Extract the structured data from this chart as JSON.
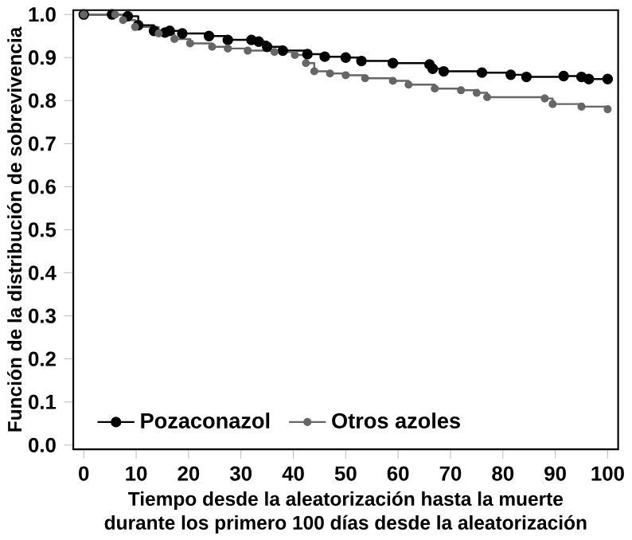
{
  "chart_data": {
    "type": "step",
    "xlabel": "Tiempo desde la aleatorización hasta la muerte\ndurante los primero 100 días desde la aleatorización",
    "ylabel": "Función de la distribución de sobrevivencia",
    "xlim": [
      -2,
      102
    ],
    "ylim": [
      -0.01,
      1.01
    ],
    "xticks": [
      0,
      10,
      20,
      30,
      40,
      50,
      60,
      70,
      80,
      90,
      100
    ],
    "yticks": [
      {
        "value": 0,
        "label": "0.0"
      },
      {
        "value": 0.1,
        "label": "0.1"
      },
      {
        "value": 0.2,
        "label": "0.2"
      },
      {
        "value": 0.3,
        "label": "0.3"
      },
      {
        "value": 0.4,
        "label": "0.4"
      },
      {
        "value": 0.5,
        "label": "0.5"
      },
      {
        "value": 0.6,
        "label": "0.6"
      },
      {
        "value": 0.7,
        "label": "0.7"
      },
      {
        "value": 0.8,
        "label": "0.8"
      },
      {
        "value": 0.9,
        "label": "0.9"
      },
      {
        "value": 1,
        "label": "1.0"
      }
    ],
    "legend": "bottom left",
    "marker": "circle",
    "grid": false,
    "series": [
      {
        "name": "Pozaconazol",
        "color": "#000000",
        "x": [
          0,
          5.4,
          8.4,
          10.4,
          13.4,
          15.5,
          16.4,
          18.8,
          23.9,
          27.5,
          32,
          33.4,
          35,
          38,
          42.7,
          46,
          50,
          53,
          59,
          66,
          66.6,
          68.7,
          76,
          81.5,
          84.5,
          91.6,
          95,
          96.4,
          100
        ],
        "values": [
          1,
          1,
          0.996,
          0.975,
          0.962,
          0.958,
          0.962,
          0.956,
          0.95,
          0.941,
          0.941,
          0.937,
          0.925,
          0.916,
          0.908,
          0.902,
          0.9,
          0.892,
          0.887,
          0.884,
          0.874,
          0.868,
          0.865,
          0.86,
          0.855,
          0.857,
          0.855,
          0.85,
          0.85
        ]
      },
      {
        "name": "Otros azoles",
        "color": "#666666",
        "x": [
          0,
          6,
          7.5,
          9.8,
          14.3,
          17.3,
          20.3,
          24.5,
          27.5,
          31.3,
          36.4,
          40.3,
          42.4,
          44,
          47,
          50,
          53.7,
          59,
          62,
          67,
          72,
          75,
          77,
          88,
          89.5,
          95,
          100
        ],
        "values": [
          1,
          1,
          0.987,
          0.971,
          0.956,
          0.943,
          0.933,
          0.925,
          0.921,
          0.916,
          0.913,
          0.906,
          0.887,
          0.868,
          0.863,
          0.859,
          0.852,
          0.846,
          0.837,
          0.828,
          0.824,
          0.818,
          0.808,
          0.805,
          0.792,
          0.786,
          0.78
        ]
      }
    ]
  }
}
